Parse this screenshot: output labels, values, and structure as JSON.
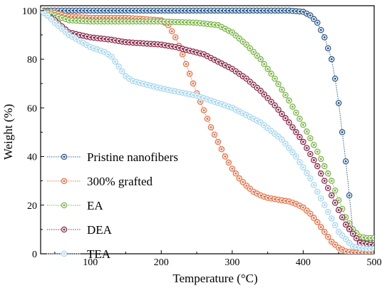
{
  "chart_data": {
    "type": "scatter",
    "xlabel": "Temperature (°C)",
    "ylabel": "Weight (%)",
    "xlim": [
      30,
      500
    ],
    "ylim": [
      0,
      102
    ],
    "xticks": [
      100,
      200,
      300,
      400,
      500
    ],
    "yticks": [
      0,
      20,
      40,
      60,
      80,
      100
    ],
    "grid": false,
    "legend_position": "bottom-left",
    "series": [
      {
        "name": "Pristine nanofibers",
        "color": "#2E5C8A",
        "x": [
          30,
          50,
          100,
          150,
          200,
          250,
          300,
          350,
          380,
          400,
          410,
          420,
          430,
          440,
          445,
          450,
          455,
          460,
          465,
          470,
          480,
          490,
          500
        ],
        "y": [
          100,
          100,
          100,
          100,
          100,
          100,
          100,
          100,
          100,
          99.5,
          98,
          95,
          89,
          80,
          72,
          62,
          50,
          38,
          24,
          10,
          5,
          4.5,
          4.5
        ]
      },
      {
        "name": "300% grafted",
        "color": "#E8734A",
        "x": [
          30,
          50,
          70,
          100,
          150,
          200,
          210,
          220,
          230,
          240,
          250,
          260,
          270,
          280,
          290,
          300,
          310,
          320,
          330,
          340,
          350,
          360,
          370,
          380,
          390,
          400,
          410,
          420,
          430,
          440,
          450,
          460,
          470,
          480,
          490,
          500
        ],
        "y": [
          100,
          99,
          97.5,
          97,
          97,
          96,
          94,
          89,
          82,
          74,
          66,
          59,
          52,
          46,
          40,
          35,
          31,
          28,
          25.5,
          24,
          23,
          22.5,
          22,
          21.5,
          20.5,
          19,
          16.5,
          13,
          9,
          5,
          2.5,
          1,
          0.5,
          0.5,
          0.5,
          0.5
        ]
      },
      {
        "name": "EA",
        "color": "#7DB54A",
        "x": [
          30,
          50,
          70,
          100,
          150,
          200,
          250,
          280,
          300,
          320,
          340,
          360,
          380,
          400,
          420,
          440,
          450,
          460,
          470,
          480,
          490,
          500
        ],
        "y": [
          100,
          98,
          96,
          95.5,
          95.5,
          95.5,
          95,
          94,
          91,
          86,
          80,
          72,
          63,
          53,
          42,
          30,
          22,
          15,
          10,
          7,
          6.5,
          6.5
        ]
      },
      {
        "name": "DEA",
        "color": "#8B2D4E",
        "x": [
          30,
          50,
          70,
          100,
          130,
          150,
          200,
          220,
          240,
          260,
          280,
          300,
          320,
          340,
          360,
          380,
          400,
          420,
          440,
          460,
          480,
          500
        ],
        "y": [
          100,
          96,
          91,
          89,
          88,
          87,
          86,
          85,
          83.5,
          82,
          79,
          76,
          72,
          67,
          61,
          54,
          46,
          36,
          24,
          12,
          4.5,
          3.5
        ]
      },
      {
        "name": "TEA",
        "color": "#A8D8F0",
        "x": [
          30,
          40,
          50,
          70,
          100,
          120,
          130,
          140,
          150,
          160,
          180,
          200,
          250,
          300,
          340,
          370,
          390,
          410,
          430,
          450,
          470,
          490,
          500
        ],
        "y": [
          100,
          98,
          95,
          90,
          85,
          83,
          81,
          77,
          73,
          71,
          69.5,
          68,
          65,
          60,
          54,
          47,
          40,
          31,
          20,
          9,
          3,
          2,
          2
        ]
      }
    ]
  }
}
